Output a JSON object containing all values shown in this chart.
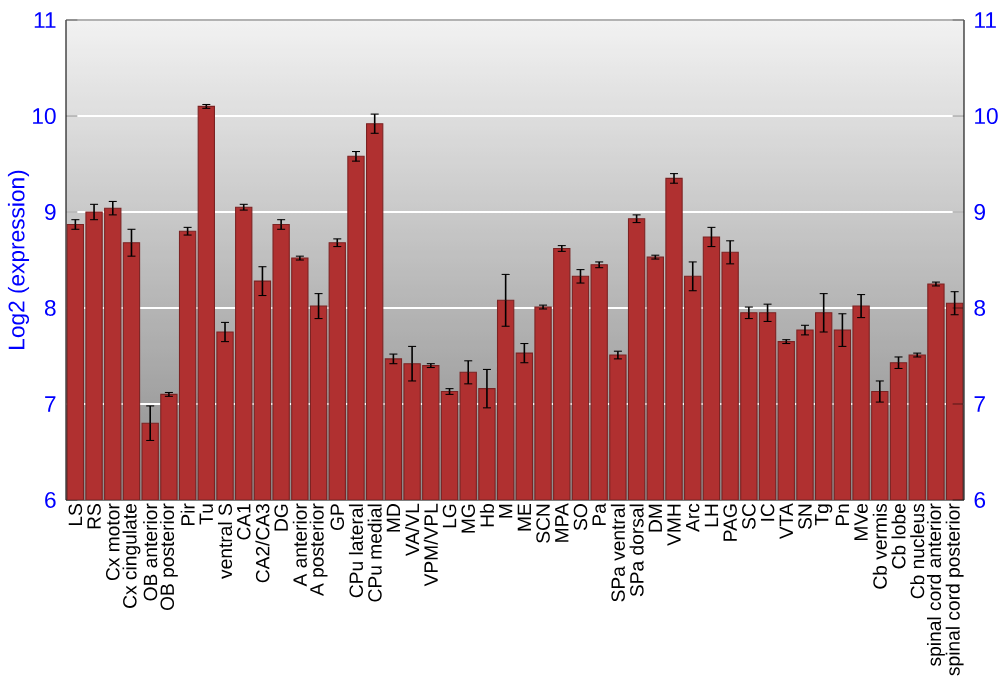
{
  "chart_data": {
    "type": "bar",
    "ylabel": "Log2 (expression)",
    "categories": [
      "LS",
      "RS",
      "Cx motor",
      "Cx cingulate",
      "OB anterior",
      "OB posterior",
      "Pir",
      "Tu",
      "ventral S",
      "CA1",
      "CA2/CA3",
      "DG",
      "A anterior",
      "A posterior",
      "GP",
      "CPu lateral",
      "CPu medial",
      "MD",
      "VA/VL",
      "VPM/VPL",
      "LG",
      "MG",
      "Hb",
      "M",
      "ME",
      "SCN",
      "MPA",
      "SO",
      "Pa",
      "SPa ventral",
      "SPa dorsal",
      "DM",
      "VMH",
      "Arc",
      "LH",
      "PAG",
      "SC",
      "IC",
      "VTA",
      "SN",
      "Tg",
      "Pn",
      "MVe",
      "Cb vermis",
      "Cb lobe",
      "Cb nucleus",
      "spinal cord anterior",
      "spinal cord posterior"
    ],
    "values": [
      8.87,
      9.0,
      9.04,
      8.68,
      6.8,
      7.1,
      8.8,
      10.1,
      7.75,
      9.05,
      8.28,
      8.87,
      8.52,
      8.02,
      8.68,
      9.58,
      9.92,
      7.47,
      7.42,
      7.4,
      7.13,
      7.33,
      7.16,
      8.08,
      7.53,
      8.01,
      8.62,
      8.33,
      8.45,
      7.51,
      8.93,
      8.53,
      9.35,
      8.33,
      8.74,
      8.58,
      7.95,
      7.95,
      7.65,
      7.77,
      7.95,
      7.77,
      8.02,
      7.13,
      7.43,
      7.51,
      8.25,
      8.05
    ],
    "errors": [
      0.05,
      0.08,
      0.07,
      0.14,
      0.18,
      0.02,
      0.04,
      0.02,
      0.1,
      0.03,
      0.15,
      0.05,
      0.02,
      0.13,
      0.04,
      0.05,
      0.1,
      0.05,
      0.18,
      0.02,
      0.03,
      0.12,
      0.2,
      0.27,
      0.1,
      0.02,
      0.03,
      0.07,
      0.03,
      0.04,
      0.04,
      0.02,
      0.05,
      0.15,
      0.1,
      0.12,
      0.06,
      0.09,
      0.02,
      0.05,
      0.2,
      0.17,
      0.12,
      0.11,
      0.06,
      0.02,
      0.02,
      0.12
    ],
    "color": "#b03030",
    "ylim": [
      6,
      11
    ],
    "yticks": [
      6,
      7,
      8,
      9,
      10,
      11
    ],
    "y2lim": [
      6,
      11
    ],
    "y2ticks": [
      6,
      7,
      8,
      9,
      10,
      11
    ],
    "grid": "y",
    "legend": false
  }
}
